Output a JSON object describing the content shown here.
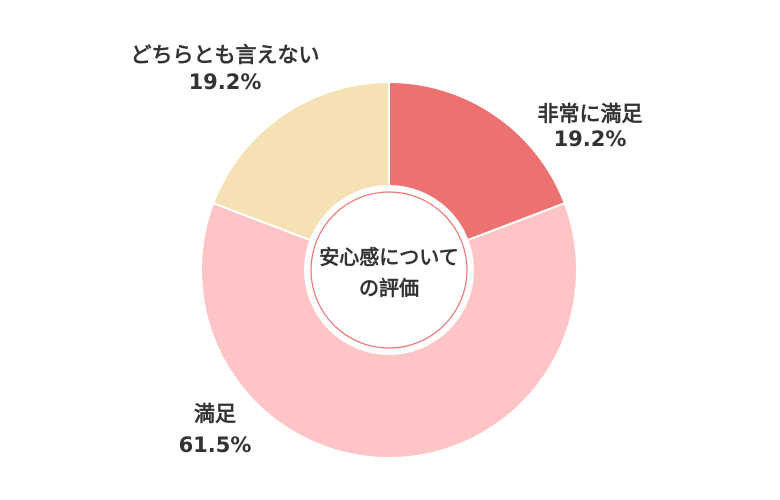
{
  "chart_data": {
    "type": "pie",
    "center_label_lines": [
      "安心感について",
      "の評価"
    ],
    "categories": [
      "非常に満足",
      "満足",
      "どちらとも言えない"
    ],
    "values": [
      19.2,
      61.5,
      19.2
    ],
    "value_labels": [
      "19.2%",
      "61.5%",
      "19.2%"
    ],
    "colors": [
      "#ec7171",
      "#fec4c6",
      "#f5e1b3"
    ]
  }
}
